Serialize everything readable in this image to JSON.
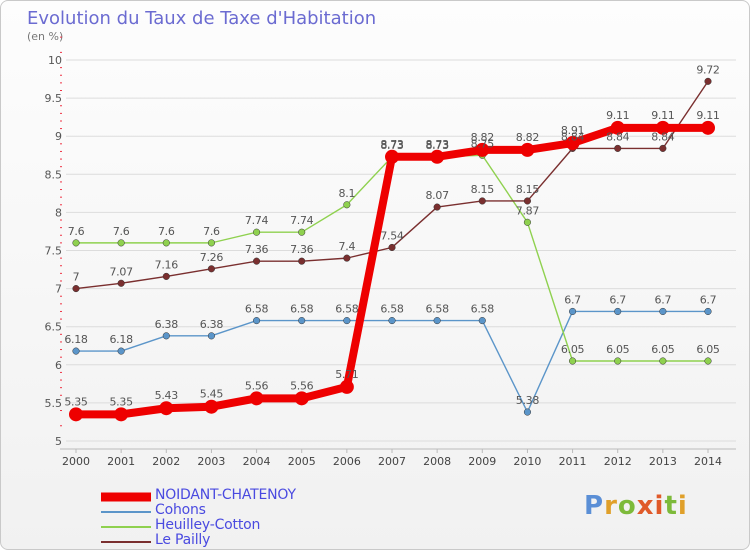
{
  "title": "Evolution du Taux de Taxe d'Habitation",
  "unit_label": "(en %)",
  "logo_text": "Proxiti",
  "chart_data": {
    "type": "line",
    "title": "Evolution du Taux de Taxe d'Habitation",
    "ylabel": "(en %)",
    "x": [
      "2000",
      "2001",
      "2002",
      "2003",
      "2004",
      "2005",
      "2006",
      "2007",
      "2008",
      "2009",
      "2010",
      "2011",
      "2012",
      "2013",
      "2014"
    ],
    "y_ticks": [
      "5",
      "5.5",
      "6",
      "6.5",
      "7",
      "7.5",
      "8",
      "8.5",
      "9",
      "9.5",
      "10"
    ],
    "ylim": [
      5,
      10
    ],
    "grid": "horizontal",
    "legend_position": "bottom-left",
    "series": [
      {
        "name": "NOIDANT-CHATENOY",
        "color": "#ee0000",
        "emphasis": true,
        "values": [
          5.35,
          5.35,
          5.43,
          5.45,
          5.56,
          5.56,
          5.71,
          8.73,
          8.73,
          8.82,
          8.82,
          8.91,
          9.11,
          9.11,
          9.11
        ],
        "labels": [
          "5.35",
          "5.35",
          "5.43",
          "5.45",
          "5.56",
          "5.56",
          "5.71",
          "8.73",
          "8.73",
          "8.82",
          "8.82",
          "8.91",
          "9.11",
          "9.11",
          "9.11"
        ]
      },
      {
        "name": "Cohons",
        "color": "#5b95c9",
        "values": [
          6.18,
          6.18,
          6.38,
          6.38,
          6.58,
          6.58,
          6.58,
          6.58,
          6.58,
          6.58,
          5.38,
          6.7,
          6.7,
          6.7,
          6.7
        ],
        "labels": [
          "6.18",
          "6.18",
          "6.38",
          "6.38",
          "6.58",
          "6.58",
          "6.58",
          "6.58",
          "6.58",
          "6.58",
          "5.38",
          "6.7",
          "6.7",
          "6.7",
          "6.7"
        ]
      },
      {
        "name": "Heuilley-Cotton",
        "color": "#8fd14f",
        "values": [
          7.6,
          7.6,
          7.6,
          7.6,
          7.74,
          7.74,
          8.1,
          8.73,
          8.73,
          8.75,
          7.87,
          6.05,
          6.05,
          6.05,
          6.05
        ],
        "labels": [
          "7.6",
          "7.6",
          "7.6",
          "7.6",
          "7.74",
          "7.74",
          "8.1",
          "8.73",
          "8.73",
          "8.75",
          "7.87",
          "6.05",
          "6.05",
          "6.05",
          "6.05"
        ]
      },
      {
        "name": "Le Pailly",
        "color": "#7a2f2f",
        "values": [
          7.0,
          7.07,
          7.16,
          7.26,
          7.36,
          7.36,
          7.4,
          7.54,
          8.07,
          8.15,
          8.15,
          8.84,
          8.84,
          8.84,
          9.72
        ],
        "labels": [
          "7",
          "7.07",
          "7.16",
          "7.26",
          "7.36",
          "7.36",
          "7.4",
          "7.54",
          "8.07",
          "8.15",
          "8.15",
          "8.84",
          "8.84",
          "8.84",
          "9.72"
        ]
      }
    ]
  }
}
